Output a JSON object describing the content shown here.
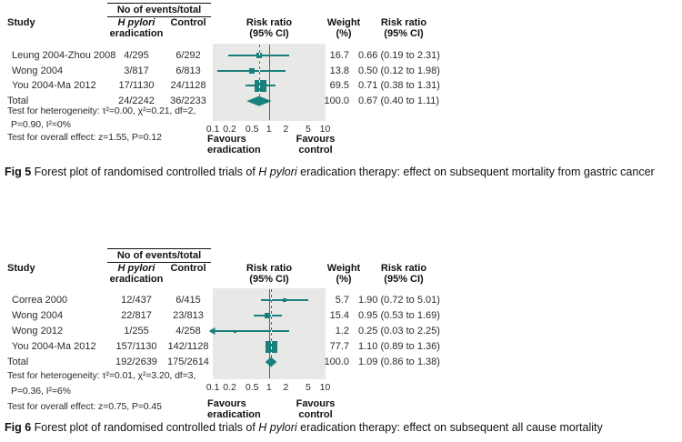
{
  "colors": {
    "teal": "#1a807d",
    "plot_bg": "#e8e8e6",
    "text": "#2b2b2b",
    "heading": "#111111"
  },
  "chart_data": [
    {
      "type": "forest",
      "fig_label": "Fig 5",
      "caption_parts": {
        "fig_label": "Fig 5",
        "prefix": " Forest plot of randomised controlled trials of ",
        "italic": "H pylori",
        "suffix": " eradication therapy: effect on subsequent mortality from gastric cancer"
      },
      "headers": {
        "study": "Study",
        "events_group": "No of events/total",
        "arm1_line1": "H pylori",
        "arm1_line2": "eradication",
        "arm2": "Control",
        "risk_ratio_line1": "Risk ratio",
        "risk_ratio_line2": "(95% CI)",
        "weight_line1": "Weight",
        "weight_line2": "(%)"
      },
      "x_axis": {
        "scale": "log",
        "min": 0.1,
        "max": 10,
        "ticks": [
          "0.1",
          "0.2",
          "0.5",
          "1",
          "2",
          "5",
          "10"
        ],
        "favours_left_line1": "Favours",
        "favours_left_line2": "eradication",
        "favours_right_line1": "Favours",
        "favours_right_line2": "control"
      },
      "studies": [
        {
          "study": "Leung 2004-Zhou 2008",
          "eradication": "4/295",
          "control": "6/292",
          "rr": 0.66,
          "ci_low": 0.19,
          "ci_high": 2.31,
          "weight": "16.7",
          "rr_text": "0.66 (0.19 to 2.31)"
        },
        {
          "study": "Wong 2004",
          "eradication": "3/817",
          "control": "6/813",
          "rr": 0.5,
          "ci_low": 0.12,
          "ci_high": 1.98,
          "weight": "13.8",
          "rr_text": "0.50 (0.12 to 1.98)"
        },
        {
          "study": "You 2004-Ma 2012",
          "eradication": "17/1130",
          "control": "24/1128",
          "rr": 0.71,
          "ci_low": 0.38,
          "ci_high": 1.31,
          "weight": "69.5",
          "rr_text": "0.71 (0.38 to 1.31)"
        }
      ],
      "total": {
        "study": "Total",
        "eradication": "24/2242",
        "control": "36/2233",
        "rr": 0.67,
        "ci_low": 0.4,
        "ci_high": 1.11,
        "weight": "100.0",
        "rr_text": "0.67 (0.40 to 1.11)"
      },
      "stats": {
        "heterogeneity_line1": "Test for heterogeneity: τ²=0.00, χ²=0.21, df=2,",
        "heterogeneity_line2": "P=0.90, I²=0%",
        "overall": "Test for overall effect: z=1.55, P=0.12"
      }
    },
    {
      "type": "forest",
      "fig_label": "Fig 6",
      "caption_parts": {
        "fig_label": "Fig 6",
        "prefix": " Forest plot of randomised controlled trials of ",
        "italic": "H pylori",
        "suffix": " eradication therapy: effect on subsequent all cause mortality"
      },
      "headers": {
        "study": "Study",
        "events_group": "No of events/total",
        "arm1_line1": "H pylori",
        "arm1_line2": "eradication",
        "arm2": "Control",
        "risk_ratio_line1": "Risk ratio",
        "risk_ratio_line2": "(95% CI)",
        "weight_line1": "Weight",
        "weight_line2": "(%)"
      },
      "x_axis": {
        "scale": "log",
        "min": 0.1,
        "max": 10,
        "ticks": [
          "0.1",
          "0.2",
          "0.5",
          "1",
          "2",
          "5",
          "10"
        ],
        "favours_left_line1": "Favours",
        "favours_left_line2": "eradication",
        "favours_right_line1": "Favours",
        "favours_right_line2": "control"
      },
      "studies": [
        {
          "study": "Correa 2000",
          "eradication": "12/437",
          "control": "6/415",
          "rr": 1.9,
          "ci_low": 0.72,
          "ci_high": 5.01,
          "weight": "5.7",
          "rr_text": "1.90 (0.72 to 5.01)"
        },
        {
          "study": "Wong 2004",
          "eradication": "22/817",
          "control": "23/813",
          "rr": 0.95,
          "ci_low": 0.53,
          "ci_high": 1.69,
          "weight": "15.4",
          "rr_text": "0.95 (0.53 to 1.69)"
        },
        {
          "study": "Wong 2012",
          "eradication": "1/255",
          "control": "4/258",
          "rr": 0.25,
          "ci_low": 0.03,
          "ci_high": 2.25,
          "weight": "1.2",
          "rr_text": "0.25 (0.03 to 2.25)"
        },
        {
          "study": "You 2004-Ma 2012",
          "eradication": "157/1130",
          "control": "142/1128",
          "rr": 1.1,
          "ci_low": 0.89,
          "ci_high": 1.36,
          "weight": "77.7",
          "rr_text": "1.10 (0.89 to 1.36)"
        }
      ],
      "total": {
        "study": "Total",
        "eradication": "192/2639",
        "control": "175/2614",
        "rr": 1.09,
        "ci_low": 0.86,
        "ci_high": 1.38,
        "weight": "100.0",
        "rr_text": "1.09 (0.86 to 1.38)"
      },
      "stats": {
        "heterogeneity_line1": "Test for heterogeneity: τ²=0.01, χ²=3.20, df=3,",
        "heterogeneity_line2": "P=0.36, I²=6%",
        "overall": "Test for overall effect: z=0.75, P=0.45"
      }
    }
  ]
}
